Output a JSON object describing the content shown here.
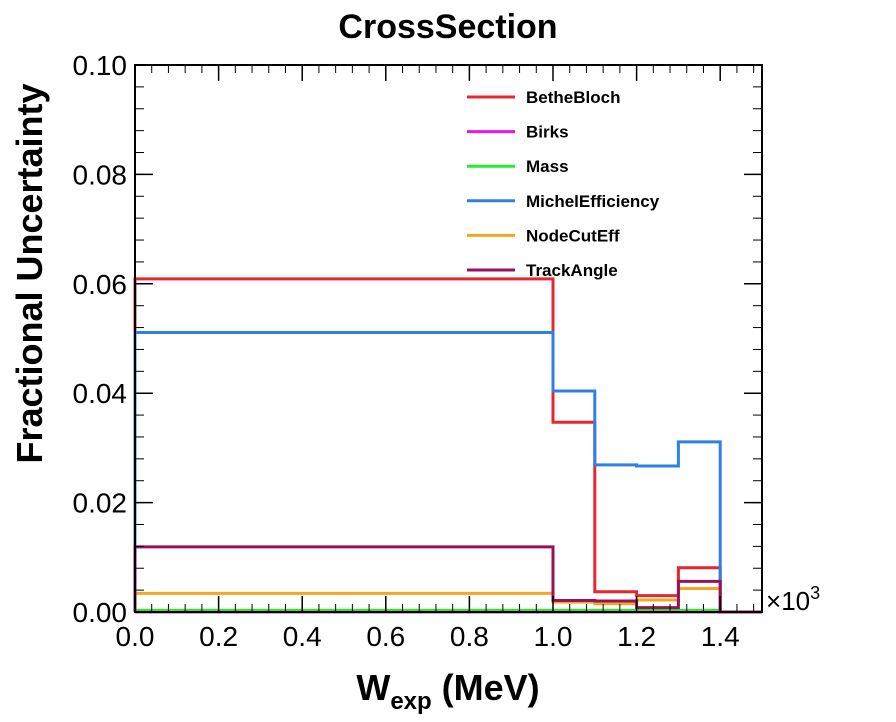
{
  "chart_data": {
    "type": "line",
    "step": true,
    "title": "CrossSection",
    "xlabel": {
      "main": "W",
      "sub": "exp",
      "tail": " (MeV)"
    },
    "ylabel": "Fractional Uncertainty",
    "x_multiplier": {
      "symbol": "×",
      "base": "10",
      "exponent": "3"
    },
    "x_bin_edges": [
      0.0,
      1.0,
      1.1,
      1.2,
      1.3,
      1.4,
      1.5
    ],
    "xlim": [
      0.0,
      1.5
    ],
    "ylim": [
      0.0,
      0.1
    ],
    "xticks": [
      "0.0",
      "0.2",
      "0.4",
      "0.6",
      "0.8",
      "1.0",
      "1.2",
      "1.4"
    ],
    "yticks": [
      "0.00",
      "0.02",
      "0.04",
      "0.06",
      "0.08",
      "0.10"
    ],
    "grid": false,
    "legend_position": "top-right",
    "series": [
      {
        "name": "BetheBloch",
        "color": "#e8262f",
        "values": [
          0.0609,
          0.0347,
          0.0037,
          0.003,
          0.0081,
          0.0
        ]
      },
      {
        "name": "Birks",
        "color": "#ee14e6",
        "values": [
          0.0,
          0.0,
          0.0,
          0.0,
          0.0,
          0.0
        ]
      },
      {
        "name": "Mass",
        "color": "#22ee2f",
        "values": [
          0.0003,
          0.0003,
          0.0003,
          0.0003,
          0.0003,
          0.0
        ]
      },
      {
        "name": "MichelEfficiency",
        "color": "#2f80e6",
        "values": [
          0.0511,
          0.0404,
          0.0269,
          0.0267,
          0.0311,
          0.0
        ]
      },
      {
        "name": "NodeCutEff",
        "color": "#f5a623",
        "values": [
          0.0034,
          0.0018,
          0.0015,
          0.0022,
          0.0043,
          0.0
        ]
      },
      {
        "name": "TrackAngle",
        "color": "#97115c",
        "values": [
          0.0119,
          0.0021,
          0.002,
          0.0008,
          0.0056,
          0.0
        ]
      }
    ]
  }
}
